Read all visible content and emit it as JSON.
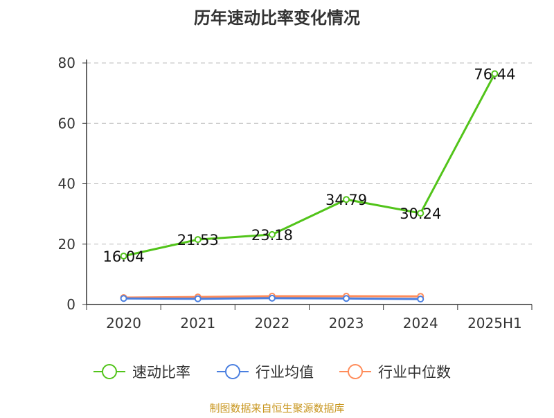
{
  "chart_data": {
    "type": "line",
    "title": "历年速动比率变化情况",
    "categories": [
      "2020",
      "2021",
      "2022",
      "2023",
      "2024",
      "2025H1"
    ],
    "ylim": [
      0,
      80
    ],
    "yticks": [
      0,
      20,
      40,
      60,
      80
    ],
    "grid": true,
    "legend_placement": "bottom",
    "series": [
      {
        "name": "速动比率",
        "color": "#52c41a",
        "values": [
          16.04,
          21.53,
          23.18,
          34.79,
          30.24,
          76.44
        ],
        "labels": [
          "16.04",
          "21.53",
          "23.18",
          "34.79",
          "30.24",
          "76.44"
        ]
      },
      {
        "name": "行业均值",
        "color": "#4a7fe0",
        "values": [
          2.0,
          1.9,
          2.1,
          2.0,
          1.8,
          null
        ]
      },
      {
        "name": "行业中位数",
        "color": "#ff8c5a",
        "values": [
          2.3,
          2.5,
          2.75,
          2.75,
          2.7,
          null
        ]
      }
    ]
  },
  "footer": "制图数据来自恒生聚源数据库"
}
